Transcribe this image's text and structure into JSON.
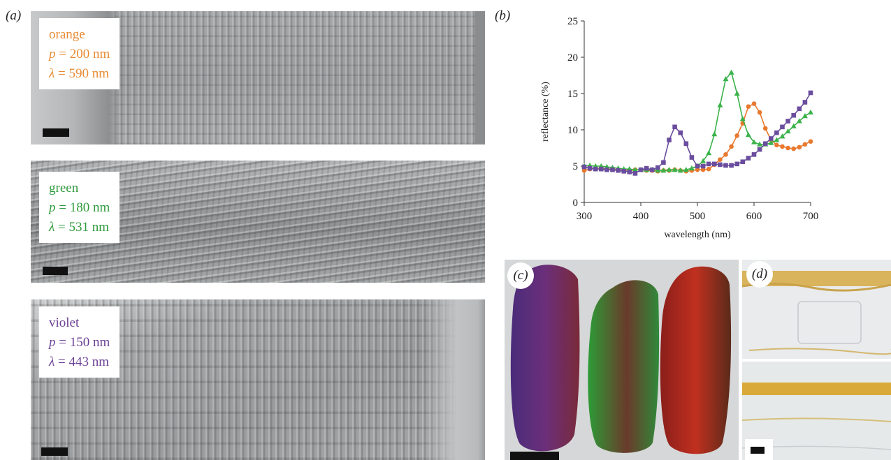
{
  "figure": {
    "panel_a_label": "(a)",
    "panel_b_label": "(b)",
    "panel_c_label": "(c)",
    "panel_d_label": "(d)"
  },
  "sem_panels": [
    {
      "color_name": "orange",
      "p_symbol": "p",
      "p_text": " = 200 nm",
      "lambda_symbol": "λ",
      "lambda_text": " = 590 nm",
      "color": "#e88a33"
    },
    {
      "color_name": "green",
      "p_symbol": "p",
      "p_text": " = 180 nm",
      "lambda_symbol": "λ",
      "lambda_text": " = 531 nm",
      "color": "#2f9a3c"
    },
    {
      "color_name": "violet",
      "p_symbol": "p",
      "p_text": " = 150 nm",
      "lambda_symbol": "λ",
      "lambda_text": " = 443 nm",
      "color": "#6b3f94"
    }
  ],
  "chart_data": {
    "type": "line",
    "xlabel": "wavelength (nm)",
    "ylabel": "reflectance (%)",
    "xlim": [
      300,
      700
    ],
    "ylim": [
      0,
      25
    ],
    "xticks": [
      300,
      400,
      500,
      600,
      700
    ],
    "yticks": [
      0,
      5,
      10,
      15,
      20,
      25
    ],
    "grid": false,
    "series": [
      {
        "color": "#e8792e",
        "marker": "circle",
        "x": [
          300,
          310,
          320,
          330,
          340,
          350,
          360,
          370,
          380,
          390,
          400,
          410,
          420,
          430,
          440,
          450,
          460,
          470,
          480,
          490,
          500,
          510,
          520,
          530,
          540,
          550,
          560,
          570,
          580,
          590,
          600,
          610,
          620,
          630,
          640,
          650,
          660,
          670,
          680,
          690,
          700
        ],
        "y": [
          4.4,
          4.6,
          4.7,
          4.7,
          4.6,
          4.6,
          4.5,
          4.4,
          4.4,
          4.5,
          4.5,
          4.4,
          4.4,
          4.3,
          4.4,
          4.4,
          4.5,
          4.4,
          4.3,
          4.4,
          4.5,
          4.5,
          4.6,
          5.2,
          5.9,
          6.6,
          7.7,
          9.2,
          10.9,
          13.2,
          13.6,
          12.4,
          10.2,
          8.6,
          7.9,
          7.7,
          7.5,
          7.4,
          7.6,
          8.0,
          8.4
        ]
      },
      {
        "color": "#3bb24a",
        "marker": "triangle",
        "x": [
          300,
          310,
          320,
          330,
          340,
          350,
          360,
          370,
          380,
          390,
          400,
          410,
          420,
          430,
          440,
          450,
          460,
          470,
          480,
          490,
          500,
          510,
          520,
          530,
          540,
          550,
          560,
          570,
          580,
          590,
          600,
          610,
          620,
          630,
          640,
          650,
          660,
          670,
          680,
          690,
          700
        ],
        "y": [
          5.0,
          5.1,
          5.0,
          5.0,
          4.9,
          4.8,
          4.7,
          4.6,
          4.6,
          4.5,
          4.5,
          4.5,
          4.5,
          4.4,
          4.4,
          4.5,
          4.5,
          4.4,
          4.5,
          4.7,
          5.0,
          5.7,
          6.8,
          9.4,
          13.4,
          17.0,
          17.9,
          15.0,
          11.5,
          9.3,
          8.3,
          8.0,
          8.0,
          8.2,
          8.6,
          9.1,
          9.8,
          10.5,
          11.2,
          11.9,
          12.4
        ]
      },
      {
        "color": "#6a4d9e",
        "marker": "square",
        "x": [
          300,
          310,
          320,
          330,
          340,
          350,
          360,
          370,
          380,
          390,
          400,
          410,
          420,
          430,
          440,
          450,
          460,
          470,
          480,
          490,
          500,
          510,
          520,
          530,
          540,
          550,
          560,
          570,
          580,
          590,
          600,
          610,
          620,
          630,
          640,
          650,
          660,
          670,
          680,
          690,
          700
        ],
        "y": [
          4.9,
          4.7,
          4.6,
          4.6,
          4.5,
          4.5,
          4.4,
          4.3,
          4.2,
          4.0,
          4.5,
          4.7,
          4.5,
          4.8,
          5.5,
          8.6,
          10.4,
          9.6,
          8.1,
          6.2,
          5.0,
          5.0,
          5.3,
          5.3,
          5.2,
          5.1,
          5.1,
          5.3,
          5.6,
          6.1,
          6.6,
          7.3,
          8.1,
          8.8,
          9.6,
          10.4,
          11.2,
          12.0,
          12.9,
          13.8,
          15.1
        ]
      }
    ]
  }
}
